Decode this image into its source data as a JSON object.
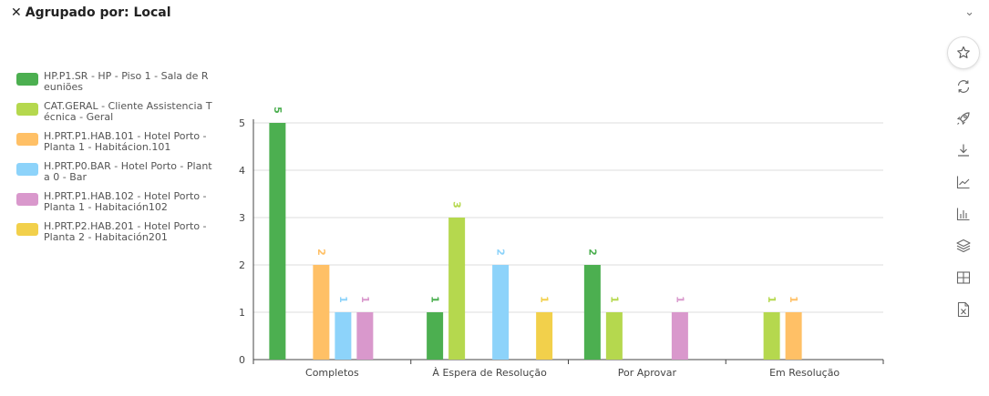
{
  "header": {
    "title": "Agrupado por: Local",
    "close_glyph": "✕",
    "collapse_glyph": "⌄"
  },
  "toolbar": {
    "icons": [
      "star-icon",
      "refresh-icon",
      "rocket-icon",
      "download-icon",
      "line-chart-icon",
      "bar-chart-icon",
      "layers-icon",
      "table-icon",
      "excel-icon"
    ]
  },
  "chart_data": {
    "type": "bar",
    "categories": [
      "Completos",
      "À Espera de Resolução",
      "Por Aprovar",
      "Em Resolução"
    ],
    "ylim": [
      0,
      5
    ],
    "yticks": [
      0,
      1,
      2,
      3,
      4,
      5
    ],
    "grid": true,
    "legend_position": "left",
    "xlabel": "",
    "ylabel": "",
    "series": [
      {
        "name": "HP.P1.SR - HP - Piso 1 - Sala de Reuniões",
        "color": "#4CAF50",
        "values": [
          5,
          1,
          2,
          0
        ]
      },
      {
        "name": "CAT.GERAL - Cliente Assistencia Técnica - Geral",
        "color": "#B5D84E",
        "values": [
          0,
          3,
          1,
          1
        ]
      },
      {
        "name": "H.PRT.P1.HAB.101 - Hotel Porto - Planta 1 - Habitácion.101",
        "color": "#FFC066",
        "values": [
          2,
          0,
          0,
          1
        ]
      },
      {
        "name": "H.PRT.P0.BAR - Hotel Porto - Planta 0 - Bar",
        "color": "#8DD3FA",
        "values": [
          1,
          2,
          0,
          0
        ]
      },
      {
        "name": "H.PRT.P1.HAB.102 - Hotel Porto - Planta 1 - Habitación102",
        "color": "#D998CC",
        "values": [
          1,
          0,
          1,
          0
        ]
      },
      {
        "name": "H.PRT.P2.HAB.201 - Hotel Porto - Planta 2 - Habitación201",
        "color": "#F2D04B",
        "values": [
          0,
          1,
          0,
          0
        ]
      }
    ]
  }
}
